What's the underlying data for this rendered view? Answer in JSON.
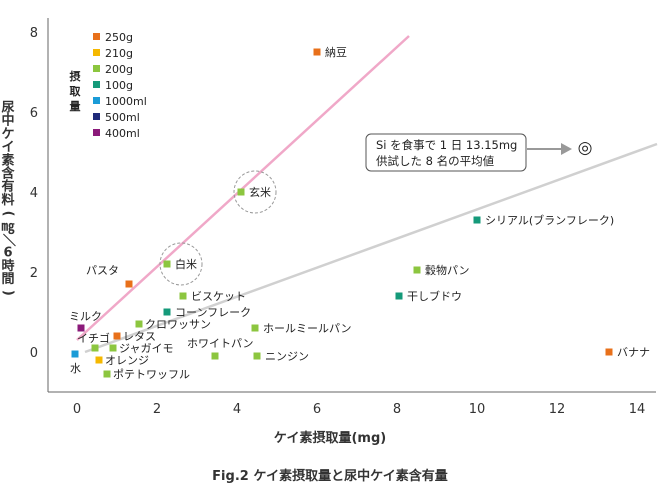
{
  "chart_data": {
    "type": "scatter",
    "title": "Fig.2 ケイ素摂取量と尿中ケイ素含有量",
    "xlabel": "ケイ素摂取量(mg)",
    "ylabel": "尿中ケイ素含有料(㎎／6時間)",
    "xlim": [
      -0.7,
      14.5
    ],
    "ylim": [
      -1.1,
      8.3
    ],
    "xticks": [
      "0",
      "2",
      "4",
      "6",
      "8",
      "10",
      "12",
      "14"
    ],
    "yticks": [
      "0",
      "2",
      "4",
      "6",
      "8"
    ],
    "legend_title": "摂取量",
    "legend": [
      {
        "label": "250g",
        "color": "#e8701a"
      },
      {
        "label": "210g",
        "color": "#f5b800"
      },
      {
        "label": "200g",
        "color": "#8cc63f"
      },
      {
        "label": "100g",
        "color": "#159a7a"
      },
      {
        "label": "1000ml",
        "color": "#1a9bd7"
      },
      {
        "label": "500ml",
        "color": "#1f2a7a"
      },
      {
        "label": "400ml",
        "color": "#8b1a7a"
      }
    ],
    "points": [
      {
        "name": "納豆",
        "x": 6.0,
        "y": 7.5,
        "color": "#e8701a"
      },
      {
        "name": "玄米",
        "x": 4.1,
        "y": 4.0,
        "color": "#8cc63f"
      },
      {
        "name": "白米",
        "x": 2.25,
        "y": 2.2,
        "color": "#8cc63f"
      },
      {
        "name": "パスタ",
        "x": 1.3,
        "y": 1.7,
        "color": "#e8701a"
      },
      {
        "name": "ビスケット",
        "x": 2.65,
        "y": 1.4,
        "color": "#8cc63f"
      },
      {
        "name": "コーンフレーク",
        "x": 2.25,
        "y": 1.0,
        "color": "#159a7a"
      },
      {
        "name": "クロワッサン",
        "x": 1.55,
        "y": 0.7,
        "color": "#8cc63f"
      },
      {
        "name": "ミルク",
        "x": 0.1,
        "y": 0.6,
        "color": "#8b1a7a"
      },
      {
        "name": "レタス",
        "x": 1.0,
        "y": 0.4,
        "color": "#e8701a"
      },
      {
        "name": "イチゴ",
        "x": 0.45,
        "y": 0.1,
        "color": "#8cc63f"
      },
      {
        "name": "ジャガイモ",
        "x": 0.9,
        "y": 0.1,
        "color": "#8cc63f"
      },
      {
        "name": "水",
        "x": -0.05,
        "y": -0.05,
        "color": "#1a9bd7"
      },
      {
        "name": "オレンジ",
        "x": 0.55,
        "y": -0.2,
        "color": "#f5b800"
      },
      {
        "name": "ポテトワッフル",
        "x": 0.75,
        "y": -0.55,
        "color": "#8cc63f"
      },
      {
        "name": "ホワイトパン",
        "x": 3.45,
        "y": -0.1,
        "color": "#8cc63f"
      },
      {
        "name": "ホールミールパン",
        "x": 4.45,
        "y": 0.6,
        "color": "#8cc63f"
      },
      {
        "name": "ニンジン",
        "x": 4.5,
        "y": -0.1,
        "color": "#8cc63f"
      },
      {
        "name": "シリアル(ブランフレーク)",
        "x": 10.0,
        "y": 3.3,
        "color": "#159a7a"
      },
      {
        "name": "穀物パン",
        "x": 8.5,
        "y": 2.05,
        "color": "#8cc63f"
      },
      {
        "name": "干しブドウ",
        "x": 8.05,
        "y": 1.4,
        "color": "#159a7a"
      },
      {
        "name": "バナナ",
        "x": 13.3,
        "y": 0.0,
        "color": "#e8701a"
      }
    ],
    "lines": [
      {
        "x": [
          0,
          8.3
        ],
        "y": [
          0.3,
          7.9
        ],
        "color": "#f0a8c8"
      },
      {
        "x": [
          0.2,
          14.5
        ],
        "y": [
          0,
          5.2
        ],
        "color": "#d0d0d0"
      }
    ],
    "annotation": {
      "lines": [
        "Si を食事で 1 日 13.15mg",
        "供試した 8 名の平均値"
      ],
      "marker": "◎",
      "x": 12.7,
      "y": 5.1
    }
  }
}
